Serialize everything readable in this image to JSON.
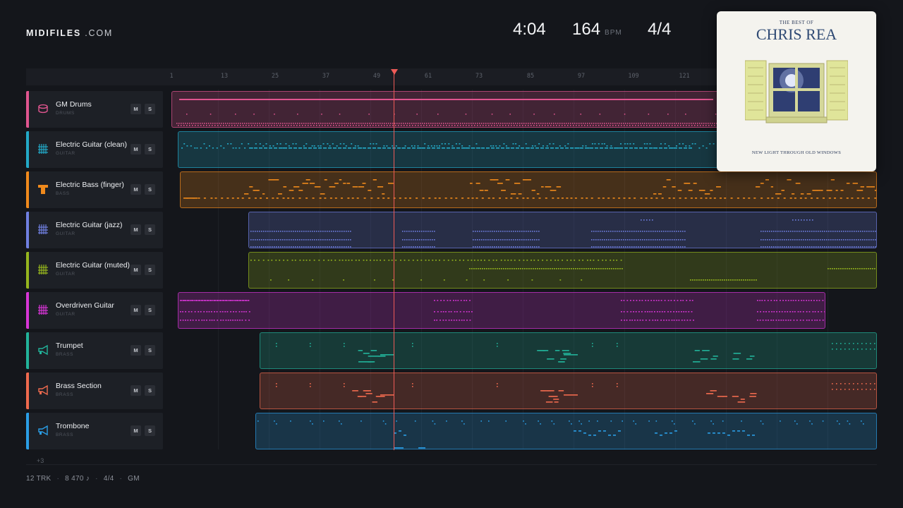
{
  "brand": {
    "name": "MIDIFILES",
    "suffix": " .COM"
  },
  "stats": {
    "duration": "4:04",
    "tempo": "164",
    "tempo_unit": "BPM",
    "time_signature": "4/4"
  },
  "ruler": {
    "ticks": [
      "1",
      "13",
      "25",
      "37",
      "49",
      "61",
      "73",
      "85",
      "97",
      "109",
      "121"
    ]
  },
  "tracks": [
    {
      "name": "GM Drums",
      "category": "DRUMS",
      "color": "#e0558f",
      "icon": "drum-icon"
    },
    {
      "name": "Electric Guitar (clean)",
      "category": "GUITAR",
      "color": "#23a9c7",
      "icon": "guitar-icon"
    },
    {
      "name": "Electric Bass (finger)",
      "category": "BASS",
      "color": "#f08a1c",
      "icon": "bass-icon"
    },
    {
      "name": "Electric Guitar (jazz)",
      "category": "GUITAR",
      "color": "#6f7fe0",
      "icon": "guitar-icon"
    },
    {
      "name": "Electric Guitar (muted)",
      "category": "GUITAR",
      "color": "#95b51e",
      "icon": "guitar-icon"
    },
    {
      "name": "Overdriven Guitar",
      "category": "GUITAR",
      "color": "#d735d6",
      "icon": "guitar-icon"
    },
    {
      "name": "Trumpet",
      "category": "BRASS",
      "color": "#22b39a",
      "icon": "horn-icon"
    },
    {
      "name": "Brass Section",
      "category": "BRASS",
      "color": "#ef6a4e",
      "icon": "horn-icon"
    },
    {
      "name": "Trombone",
      "category": "BRASS",
      "color": "#2a9ee6",
      "icon": "horn-icon"
    }
  ],
  "mute_label": "M",
  "solo_label": "S",
  "more_tracks": "+3",
  "footer": {
    "tracks": "12 TRK",
    "notes": "8 470 ♪",
    "time_signature": "4/4",
    "standard": "GM"
  },
  "album": {
    "top": "THE BEST OF",
    "artist": "CHRIS REA",
    "subtitle": "NEW LIGHT THROUGH OLD WINDOWS"
  }
}
